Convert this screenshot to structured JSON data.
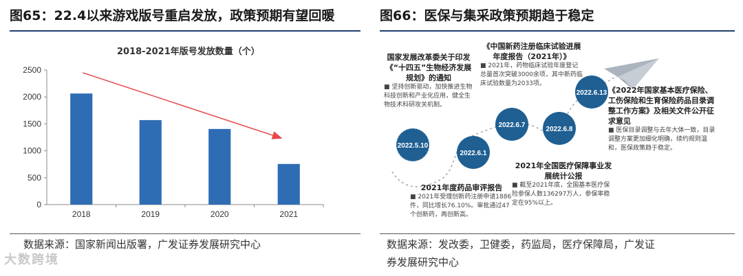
{
  "left": {
    "figure_title": "图65：22.4以来游戏版号重启发放，政策预期有望回暖",
    "source": "数据来源：国家新闻出版署，广发证券发展研究中心"
  },
  "right": {
    "figure_title": "图66：医保与集采政策预期趋于稳定",
    "source_line1": "数据来源：发改委，卫健委，药监局，医疗保障局，广发证",
    "source_line2": "券发展研究中心",
    "events": [
      {
        "date": "2022.5.10",
        "heading": "国家发展改革委关于印发《“十四五”生物经济发展规划》的通知",
        "bullet": "坚持创新驱动，加快推进生物科技创新和产业化应用，健全生物技术科研攻关机制。"
      },
      {
        "date": "2022.6.1",
        "heading": "2021年度药品审评报告",
        "bullet": "2021年受理创新药注册申请1886件，同比增长76.10%。审批通过47个创新药，再创新高。"
      },
      {
        "date": "2022.6.7",
        "heading": "《中国新药注册临床试验进展年度报告（2021年）》",
        "bullet": "2021年，药物临床试验年度登记总量首次突破3000余项，其中新药临床试验数量为2033项。"
      },
      {
        "date": "2022.6.8",
        "heading": "2021年全国医疗保障事业发展统计公报",
        "bullet": "截至2021年底，全国基本医疗保险参保人数136297万人，参保率稳定在95%以上。"
      },
      {
        "date": "2022.6.13",
        "heading": "《2022年国家基本医疗保险、工伤保险和生育保险药品目录调整工作方案》及相关文件公开征求意见",
        "bullet": "医保目录调整与去年大体一致，目录调整方案更加细化明确，续约规则温和，医保政策趋于稳定。"
      }
    ]
  },
  "watermark": "大数跨境",
  "chart_data": {
    "type": "bar",
    "title": "2018-2021年版号发放数量（个）",
    "categories": [
      "2018",
      "2019",
      "2020",
      "2021"
    ],
    "values": [
      2064,
      1570,
      1405,
      755
    ],
    "xlabel": "",
    "ylabel": "",
    "ylim": [
      0,
      2500
    ],
    "yticks": [
      0,
      500,
      1000,
      1500,
      2000,
      2500
    ],
    "grid": false,
    "legend": "none",
    "bar_color": "#2e6db4",
    "annotation": "downward trend arrow",
    "arrow_color": "#e8474a"
  }
}
